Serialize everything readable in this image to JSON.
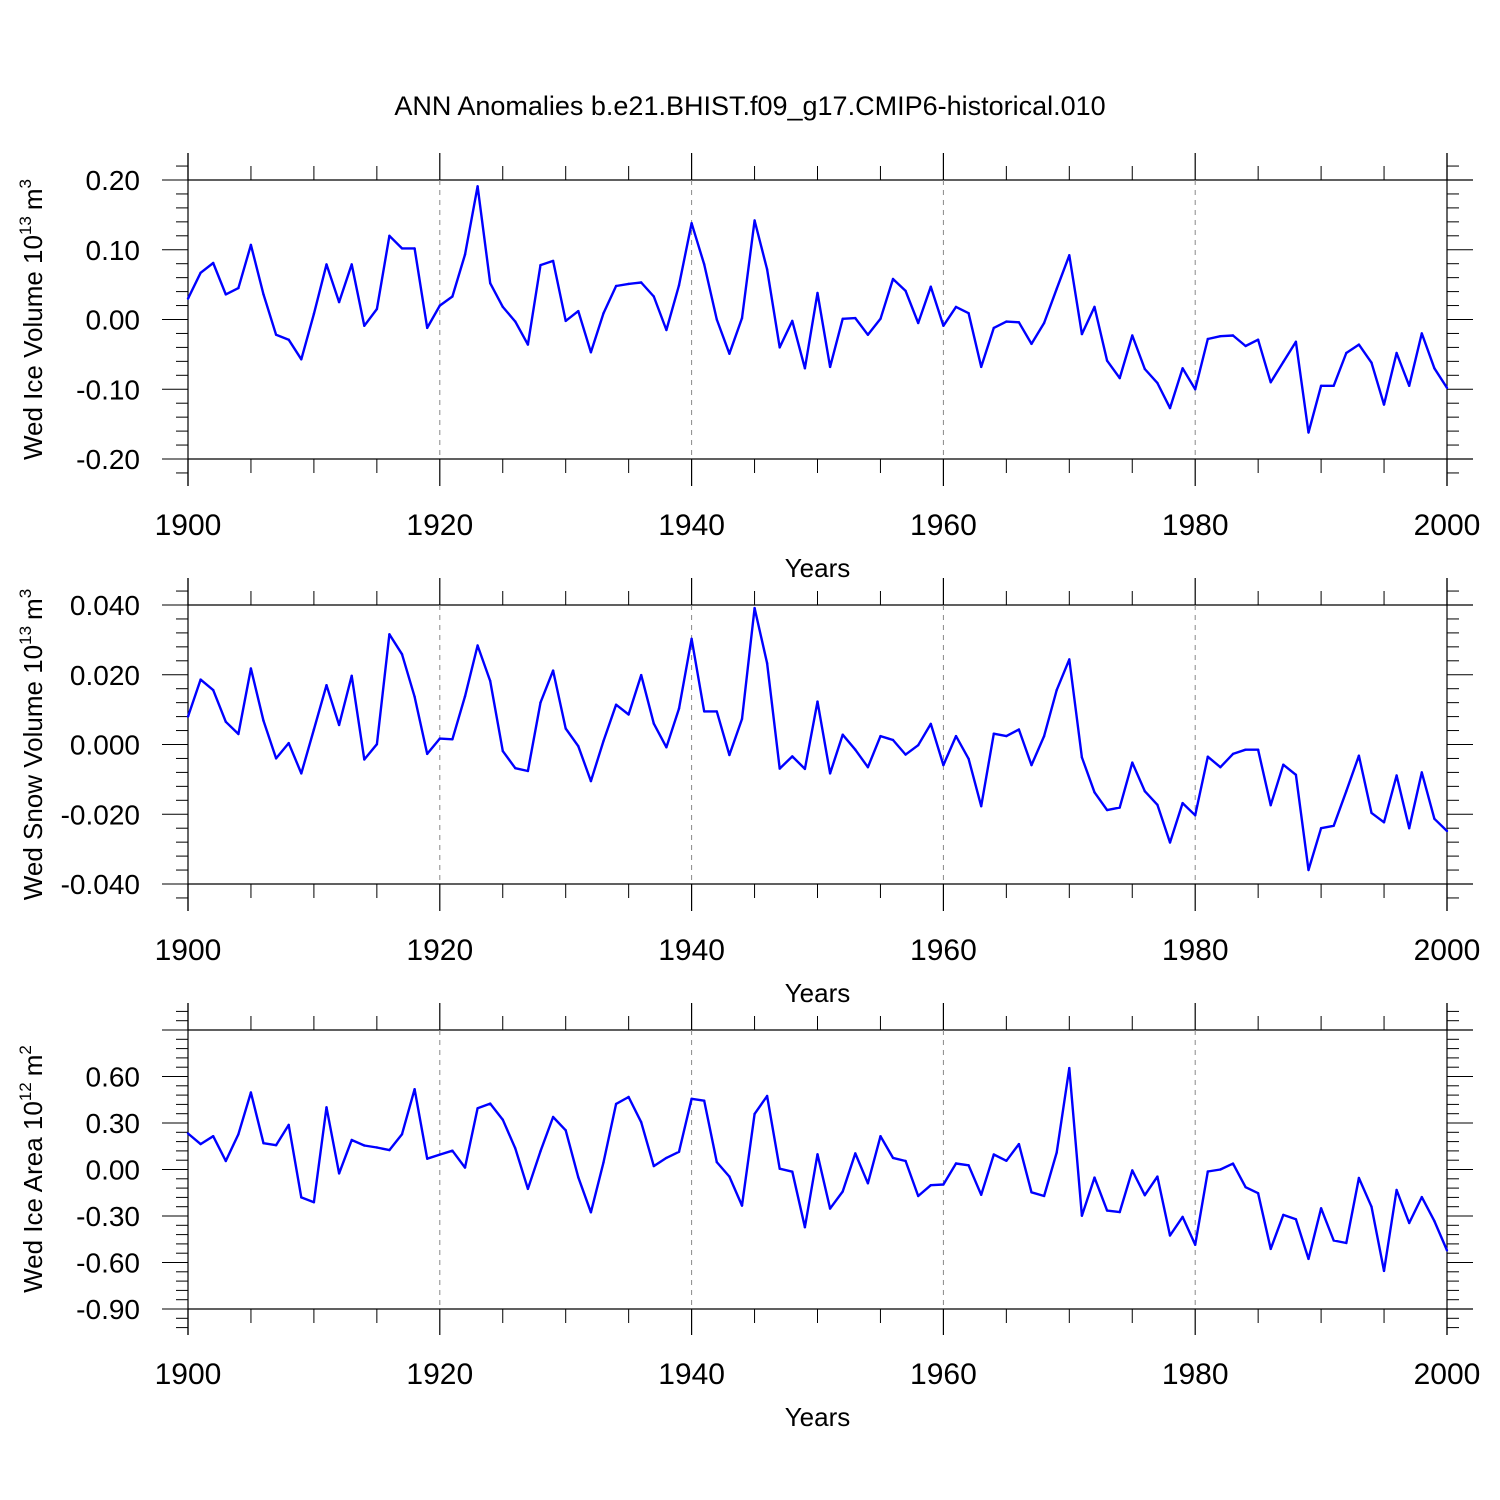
{
  "title": "ANN Anomalies b.e21.BHIST.f09_g17.CMIP6-historical.010",
  "line_color": "#0000ff",
  "chart_data": [
    {
      "type": "line",
      "ylabel": "Wed Ice Volume 10",
      "ylabel_sup": "13",
      "ylabel_unit": "m",
      "ylabel_unit_sup": "3",
      "xlabel": "Years",
      "xlim": [
        1900,
        2000
      ],
      "ylim": [
        -0.2,
        0.2
      ],
      "yticks": [
        -0.2,
        -0.1,
        0.0,
        0.1,
        0.2
      ],
      "ytick_labels": [
        "-0.20",
        "-0.10",
        "0.00",
        "0.10",
        "0.20"
      ],
      "xticks": [
        1900,
        1920,
        1940,
        1960,
        1980,
        2000
      ],
      "xtick_labels": [
        "1900",
        "1920",
        "1940",
        "1960",
        "1980",
        "2000"
      ],
      "x_start": 1900,
      "values": [
        0.03,
        0.067,
        0.081,
        0.036,
        0.045,
        0.107,
        0.036,
        -0.022,
        -0.029,
        -0.057,
        0.008,
        0.079,
        0.025,
        0.079,
        -0.009,
        0.015,
        0.12,
        0.102,
        0.102,
        -0.012,
        0.02,
        0.033,
        0.093,
        0.191,
        0.052,
        0.018,
        -0.003,
        -0.036,
        0.078,
        0.084,
        -0.002,
        0.012,
        -0.047,
        0.009,
        0.048,
        0.051,
        0.053,
        0.033,
        -0.015,
        0.049,
        0.138,
        0.079,
        0.0,
        -0.049,
        0.002,
        0.142,
        0.072,
        -0.04,
        -0.002,
        -0.07,
        0.038,
        -0.068,
        0.001,
        0.002,
        -0.022,
        0.001,
        0.058,
        0.041,
        -0.005,
        0.047,
        -0.009,
        0.018,
        0.009,
        -0.068,
        -0.012,
        -0.003,
        -0.004,
        -0.035,
        -0.005,
        0.044,
        0.092,
        -0.021,
        0.018,
        -0.059,
        -0.084,
        -0.023,
        -0.071,
        -0.091,
        -0.127,
        -0.07,
        -0.1,
        -0.028,
        -0.024,
        -0.023,
        -0.038,
        -0.029,
        -0.09,
        -0.061,
        -0.032,
        -0.162,
        -0.095,
        -0.095,
        -0.048,
        -0.036,
        -0.062,
        -0.122,
        -0.048,
        -0.095,
        -0.02,
        -0.07,
        -0.098
      ]
    },
    {
      "type": "line",
      "ylabel": "Wed Snow Volume 10",
      "ylabel_sup": "13",
      "ylabel_unit": "m",
      "ylabel_unit_sup": "3",
      "xlabel": "Years",
      "xlim": [
        1900,
        2000
      ],
      "ylim": [
        -0.04,
        0.04
      ],
      "yticks": [
        -0.04,
        -0.02,
        0.0,
        0.02,
        0.04
      ],
      "ytick_labels": [
        "-0.040",
        "-0.020",
        "0.000",
        "0.020",
        "0.040"
      ],
      "xticks": [
        1900,
        1920,
        1940,
        1960,
        1980,
        2000
      ],
      "xtick_labels": [
        "1900",
        "1920",
        "1940",
        "1960",
        "1980",
        "2000"
      ],
      "x_start": 1900,
      "values": [
        0.008,
        0.0186,
        0.0156,
        0.0065,
        0.003,
        0.0218,
        0.0068,
        -0.004,
        0.0004,
        -0.0083,
        0.0043,
        0.017,
        0.0056,
        0.0197,
        -0.0043,
        0.0001,
        0.0316,
        0.0259,
        0.0137,
        -0.0027,
        0.0017,
        0.0015,
        0.0138,
        0.0284,
        0.0182,
        -0.0019,
        -0.0068,
        -0.0076,
        0.012,
        0.0212,
        0.0046,
        -0.0005,
        -0.0105,
        0.001,
        0.0114,
        0.0086,
        0.0199,
        0.006,
        -0.0008,
        0.0103,
        0.0303,
        0.0095,
        0.0095,
        -0.003,
        0.0073,
        0.0391,
        0.0233,
        -0.0069,
        -0.0034,
        -0.007,
        0.0123,
        -0.0083,
        0.0028,
        -0.0015,
        -0.0065,
        0.0024,
        0.0013,
        -0.0029,
        -0.0002,
        0.0059,
        -0.0059,
        0.0024,
        -0.0041,
        -0.0177,
        0.0031,
        0.0024,
        0.0043,
        -0.0059,
        0.0024,
        0.0156,
        0.0244,
        -0.0037,
        -0.0137,
        -0.0188,
        -0.0181,
        -0.0052,
        -0.0134,
        -0.0173,
        -0.0281,
        -0.0168,
        -0.0203,
        -0.0035,
        -0.0065,
        -0.0027,
        -0.0015,
        -0.0015,
        -0.0174,
        -0.0058,
        -0.0087,
        -0.036,
        -0.024,
        -0.0233,
        -0.0134,
        -0.0032,
        -0.0196,
        -0.0223,
        -0.0089,
        -0.024,
        -0.008,
        -0.0213,
        -0.0248
      ]
    },
    {
      "type": "line",
      "ylabel": "Wed Ice Area 10",
      "ylabel_sup": "12",
      "ylabel_unit": "m",
      "ylabel_unit_sup": "2",
      "xlabel": "Years",
      "xlim": [
        1900,
        2000
      ],
      "ylim": [
        -0.9,
        0.9
      ],
      "yticks": [
        -0.9,
        -0.6,
        -0.3,
        0.0,
        0.3,
        0.6
      ],
      "ytick_labels": [
        "-0.90",
        "-0.60",
        "-0.30",
        "0.00",
        "0.30",
        "0.60"
      ],
      "xticks": [
        1900,
        1920,
        1940,
        1960,
        1980,
        2000
      ],
      "xtick_labels": [
        "1900",
        "1920",
        "1940",
        "1960",
        "1980",
        "2000"
      ],
      "x_start": 1900,
      "values": [
        0.232,
        0.164,
        0.215,
        0.055,
        0.228,
        0.497,
        0.17,
        0.157,
        0.288,
        -0.18,
        -0.211,
        0.401,
        -0.025,
        0.19,
        0.155,
        0.142,
        0.125,
        0.228,
        0.518,
        0.07,
        0.096,
        0.121,
        0.012,
        0.395,
        0.425,
        0.321,
        0.136,
        -0.125,
        0.118,
        0.339,
        0.253,
        -0.05,
        -0.276,
        0.046,
        0.423,
        0.468,
        0.305,
        0.022,
        0.075,
        0.114,
        0.456,
        0.444,
        0.048,
        -0.046,
        -0.233,
        0.359,
        0.474,
        0.005,
        -0.014,
        -0.372,
        0.098,
        -0.252,
        -0.142,
        0.104,
        -0.089,
        0.215,
        0.075,
        0.055,
        -0.171,
        -0.101,
        -0.097,
        0.039,
        0.027,
        -0.163,
        0.097,
        0.056,
        0.164,
        -0.147,
        -0.171,
        0.11,
        0.654,
        -0.298,
        -0.052,
        -0.265,
        -0.275,
        -0.006,
        -0.166,
        -0.046,
        -0.426,
        -0.306,
        -0.486,
        -0.013,
        0.0,
        0.038,
        -0.114,
        -0.153,
        -0.512,
        -0.293,
        -0.321,
        -0.577,
        -0.25,
        -0.458,
        -0.474,
        -0.055,
        -0.24,
        -0.654,
        -0.132,
        -0.345,
        -0.178,
        -0.333,
        -0.522
      ]
    }
  ]
}
